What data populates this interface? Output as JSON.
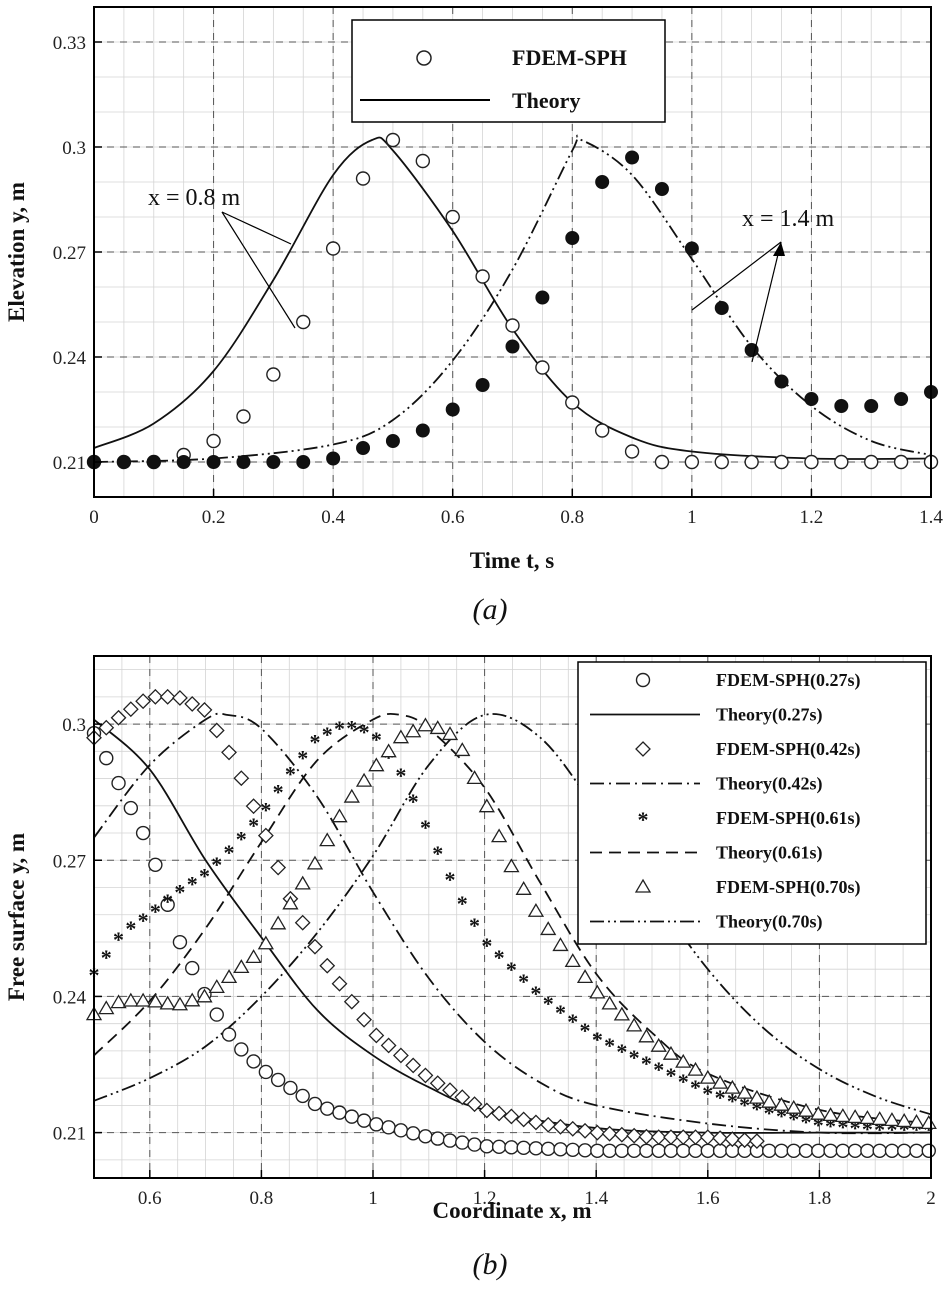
{
  "figure": {
    "panel_a_caption": "(a)",
    "panel_b_caption": "(b)"
  },
  "chart_data": [
    {
      "type": "scatter",
      "panel": "a",
      "xlabel": "Time t, s",
      "ylabel": "Elevation y, m",
      "xlim": [
        0,
        1.4
      ],
      "ylim": [
        0.2,
        0.34
      ],
      "xticks": [
        "0",
        "0.2",
        "0.4",
        "0.6",
        "0.8",
        "1",
        "1.2",
        "1.4"
      ],
      "yticks": [
        "0.21",
        "0.24",
        "0.27",
        "0.3",
        "0.33"
      ],
      "grid": true,
      "legend_position": "top-center",
      "legend": [
        "FDEM-SPH",
        "Theory"
      ],
      "annotations": [
        "x = 0.8 m",
        "x = 1.4 m"
      ],
      "series": [
        {
          "name": "FDEM-SPH",
          "location": "x = 0.8 m",
          "marker": "open-circle",
          "x": [
            0,
            0.05,
            0.1,
            0.15,
            0.2,
            0.25,
            0.3,
            0.35,
            0.4,
            0.45,
            0.5,
            0.55,
            0.6,
            0.65,
            0.7,
            0.75,
            0.8,
            0.85,
            0.9,
            0.95,
            1.0,
            1.05,
            1.1,
            1.15,
            1.2,
            1.25,
            1.3,
            1.35,
            1.4
          ],
          "y": [
            0.21,
            0.21,
            0.21,
            0.212,
            0.216,
            0.223,
            0.235,
            0.25,
            0.271,
            0.291,
            0.302,
            0.296,
            0.28,
            0.263,
            0.249,
            0.237,
            0.227,
            0.219,
            0.213,
            0.21,
            0.21,
            0.21,
            0.21,
            0.21,
            0.21,
            0.21,
            0.21,
            0.21,
            0.21
          ]
        },
        {
          "name": "FDEM-SPH",
          "location": "x = 1.4 m",
          "marker": "filled-circle",
          "x": [
            0,
            0.05,
            0.1,
            0.15,
            0.2,
            0.25,
            0.3,
            0.35,
            0.4,
            0.45,
            0.5,
            0.55,
            0.6,
            0.65,
            0.7,
            0.75,
            0.8,
            0.85,
            0.9,
            0.95,
            1.0,
            1.05,
            1.1,
            1.15,
            1.2,
            1.25,
            1.3,
            1.35,
            1.4
          ],
          "y": [
            0.21,
            0.21,
            0.21,
            0.21,
            0.21,
            0.21,
            0.21,
            0.21,
            0.211,
            0.214,
            0.216,
            0.219,
            0.225,
            0.232,
            0.243,
            0.257,
            0.274,
            0.29,
            0.297,
            0.288,
            0.271,
            0.254,
            0.242,
            0.233,
            0.228,
            0.226,
            0.226,
            0.228,
            0.23
          ]
        },
        {
          "name": "Theory",
          "location": "x = 0.8 m",
          "line": "solid",
          "x": [
            0,
            0.1,
            0.2,
            0.3,
            0.4,
            0.465,
            0.5,
            0.6,
            0.7,
            0.8,
            0.9,
            1.0,
            1.2,
            1.4
          ],
          "y": [
            0.214,
            0.221,
            0.236,
            0.262,
            0.292,
            0.302,
            0.299,
            0.276,
            0.248,
            0.227,
            0.217,
            0.213,
            0.211,
            0.211
          ]
        },
        {
          "name": "Theory",
          "location": "x = 1.4 m",
          "line": "dash-dot-dot",
          "x": [
            0,
            0.2,
            0.4,
            0.5,
            0.6,
            0.7,
            0.8,
            0.815,
            0.9,
            1.0,
            1.1,
            1.2,
            1.3,
            1.4
          ],
          "y": [
            0.21,
            0.211,
            0.215,
            0.222,
            0.239,
            0.265,
            0.299,
            0.302,
            0.292,
            0.268,
            0.243,
            0.226,
            0.216,
            0.212
          ]
        }
      ]
    },
    {
      "type": "scatter",
      "panel": "b",
      "xlabel": "Coordinate x, m",
      "ylabel": "Free surface y, m",
      "xlim": [
        0.5,
        2.0
      ],
      "ylim": [
        0.2,
        0.315
      ],
      "xticks": [
        "0.6",
        "0.8",
        "1",
        "1.2",
        "1.4",
        "1.6",
        "1.8",
        "2"
      ],
      "yticks": [
        "0.21",
        "0.24",
        "0.27",
        "0.3"
      ],
      "grid": true,
      "legend_position": "top-right",
      "legend": [
        "FDEM-SPH(0.27s)",
        "Theory(0.27s)",
        "FDEM-SPH(0.42s)",
        "Theory(0.42s)",
        "FDEM-SPH(0.61s)",
        "Theory(0.61s)",
        "FDEM-SPH(0.70s)",
        "Theory(0.70s)"
      ],
      "series": [
        {
          "name": "FDEM-SPH(0.27s)",
          "marker": "open-circle",
          "x": [
            0.5,
            0.6,
            0.65,
            0.7,
            0.75,
            0.8,
            0.9,
            1.0,
            1.1,
            1.2,
            1.4,
            1.6,
            1.8,
            2.0
          ],
          "y": [
            0.298,
            0.273,
            0.253,
            0.24,
            0.23,
            0.224,
            0.216,
            0.212,
            0.209,
            0.207,
            0.206,
            0.206,
            0.206,
            0.206
          ]
        },
        {
          "name": "Theory(0.27s)",
          "line": "solid",
          "x": [
            0.5,
            0.6,
            0.7,
            0.8,
            0.9,
            1.0,
            1.1,
            1.2,
            1.4,
            1.6,
            1.8,
            2.0
          ],
          "y": [
            0.301,
            0.29,
            0.27,
            0.253,
            0.237,
            0.227,
            0.22,
            0.215,
            0.211,
            0.21,
            0.21,
            0.21
          ]
        },
        {
          "name": "FDEM-SPH(0.42s)",
          "marker": "open-diamond",
          "x": [
            0.5,
            0.55,
            0.6,
            0.65,
            0.7,
            0.75,
            0.8,
            0.85,
            0.9,
            1.0,
            1.1,
            1.2,
            1.3,
            1.4,
            1.5,
            1.6,
            1.7
          ],
          "y": [
            0.297,
            0.302,
            0.306,
            0.306,
            0.303,
            0.292,
            0.278,
            0.262,
            0.25,
            0.232,
            0.222,
            0.215,
            0.212,
            0.21,
            0.209,
            0.209,
            0.208
          ]
        },
        {
          "name": "Theory(0.42s)",
          "line": "dash-dot",
          "x": [
            0.5,
            0.6,
            0.7,
            0.74,
            0.8,
            0.9,
            1.0,
            1.1,
            1.2,
            1.3,
            1.4,
            1.6,
            1.8,
            2.0
          ],
          "y": [
            0.275,
            0.291,
            0.301,
            0.302,
            0.299,
            0.284,
            0.263,
            0.244,
            0.23,
            0.221,
            0.216,
            0.212,
            0.21,
            0.21
          ]
        },
        {
          "name": "FDEM-SPH(0.61s)",
          "marker": "star",
          "x": [
            0.5,
            0.55,
            0.6,
            0.65,
            0.7,
            0.75,
            0.8,
            0.85,
            0.9,
            0.95,
            1.0,
            1.05,
            1.1,
            1.15,
            1.2,
            1.3,
            1.4,
            1.5,
            1.6,
            1.7,
            1.8,
            1.9,
            2.0
          ],
          "y": [
            0.245,
            0.254,
            0.258,
            0.263,
            0.267,
            0.273,
            0.28,
            0.289,
            0.297,
            0.3,
            0.298,
            0.289,
            0.276,
            0.263,
            0.252,
            0.24,
            0.231,
            0.225,
            0.219,
            0.215,
            0.212,
            0.211,
            0.211
          ]
        },
        {
          "name": "Theory(0.61s)",
          "line": "dashed",
          "x": [
            0.5,
            0.6,
            0.7,
            0.8,
            0.9,
            1.0,
            1.05,
            1.1,
            1.2,
            1.3,
            1.4,
            1.5,
            1.6,
            1.8,
            2.0
          ],
          "y": [
            0.227,
            0.239,
            0.255,
            0.274,
            0.292,
            0.301,
            0.302,
            0.299,
            0.286,
            0.265,
            0.245,
            0.232,
            0.223,
            0.215,
            0.212
          ]
        },
        {
          "name": "FDEM-SPH(0.70s)",
          "marker": "open-triangle",
          "x": [
            0.5,
            0.55,
            0.6,
            0.65,
            0.7,
            0.75,
            0.8,
            0.85,
            0.9,
            0.95,
            1.0,
            1.05,
            1.1,
            1.15,
            1.2,
            1.25,
            1.3,
            1.4,
            1.5,
            1.6,
            1.7,
            1.8,
            1.9,
            2.0
          ],
          "y": [
            0.236,
            0.239,
            0.239,
            0.238,
            0.24,
            0.245,
            0.25,
            0.26,
            0.27,
            0.282,
            0.29,
            0.297,
            0.3,
            0.297,
            0.283,
            0.268,
            0.257,
            0.241,
            0.23,
            0.222,
            0.217,
            0.214,
            0.213,
            0.212
          ]
        },
        {
          "name": "Theory(0.70s)",
          "line": "dash-dot-dot",
          "x": [
            0.5,
            0.6,
            0.7,
            0.8,
            0.9,
            1.0,
            1.1,
            1.2,
            1.3,
            1.4,
            1.5,
            1.6,
            1.7,
            1.8,
            1.9,
            2.0
          ],
          "y": [
            0.217,
            0.222,
            0.229,
            0.24,
            0.254,
            0.271,
            0.291,
            0.302,
            0.297,
            0.281,
            0.263,
            0.246,
            0.233,
            0.224,
            0.218,
            0.214
          ]
        }
      ]
    }
  ]
}
